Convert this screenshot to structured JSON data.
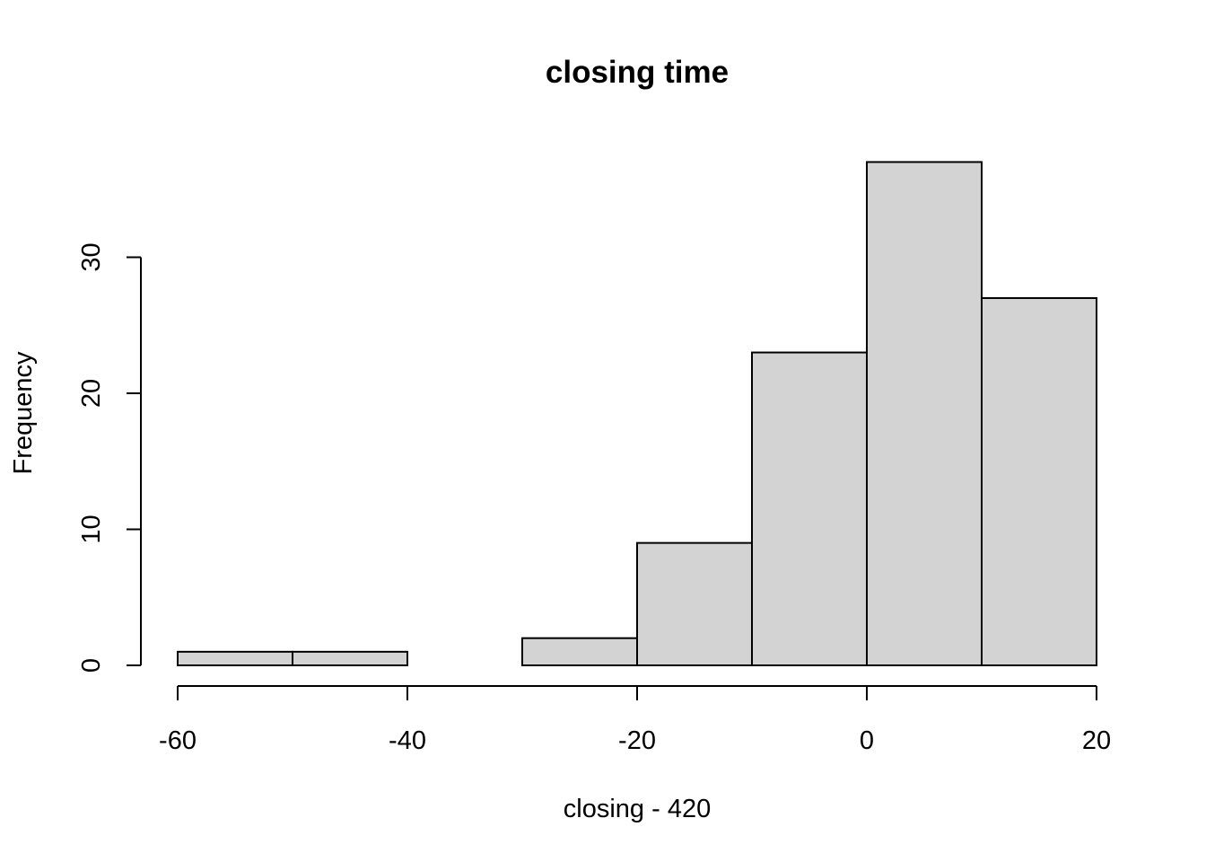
{
  "chart_data": {
    "type": "bar",
    "title": "closing time",
    "xlabel": "closing - 420",
    "ylabel": "Frequency",
    "bins": [
      {
        "from": -60,
        "to": -50,
        "count": 1
      },
      {
        "from": -50,
        "to": -40,
        "count": 1
      },
      {
        "from": -40,
        "to": -30,
        "count": 0
      },
      {
        "from": -30,
        "to": -20,
        "count": 2
      },
      {
        "from": -20,
        "to": -10,
        "count": 9
      },
      {
        "from": -10,
        "to": 0,
        "count": 23
      },
      {
        "from": 0,
        "to": 10,
        "count": 37
      },
      {
        "from": 10,
        "to": 20,
        "count": 27
      }
    ],
    "xticks": [
      "-60",
      "-40",
      "-20",
      "0",
      "20"
    ],
    "yticks": [
      "0",
      "10",
      "20",
      "30"
    ],
    "xlim": [
      -60,
      20
    ],
    "ylim": [
      0,
      37
    ],
    "grid": false,
    "legend": "none",
    "bar_color": "#d3d3d3",
    "edge_color": "#000000"
  }
}
